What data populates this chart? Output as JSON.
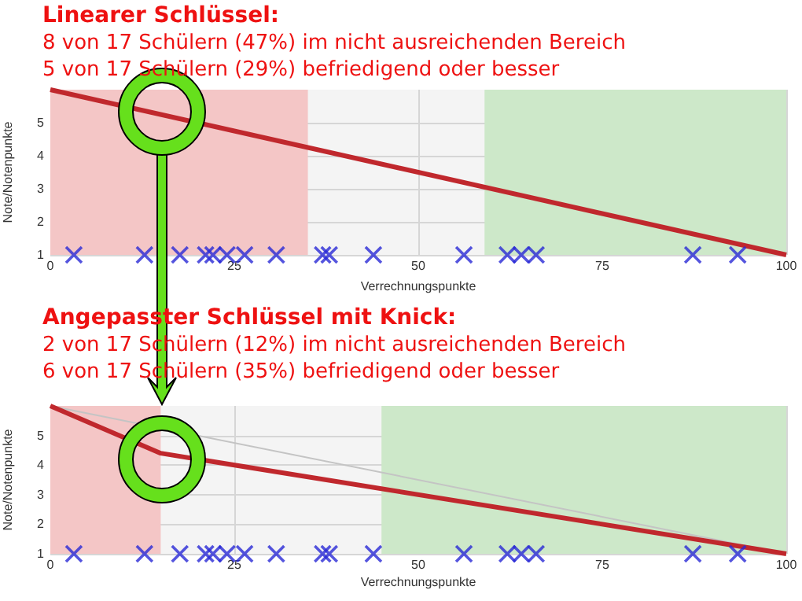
{
  "chart_data": [
    {
      "type": "line",
      "title": "Linearer Schlüssel:",
      "subtitle": "8 von 17 Schülern (47%) im nicht ausreichenden Bereich\n5 von 17 Schülern (29%) befriedigend oder besser",
      "xlabel": "Verrechnungspunkte",
      "ylabel": "Note/Notenpunkte",
      "xlim": [
        0,
        100
      ],
      "xticks": [
        0,
        25,
        50,
        75,
        100
      ],
      "ylim": [
        1,
        6
      ],
      "yticks": [
        1,
        2,
        3,
        4,
        5
      ],
      "grid": true,
      "bands": [
        {
          "axis": "x",
          "from": 0,
          "to": 35,
          "color": "#f4c6c6"
        },
        {
          "axis": "x",
          "from": 59,
          "to": 100,
          "color": "#cde8c9"
        }
      ],
      "series": [
        {
          "type": "line",
          "color": "#c0282d",
          "marker": "none",
          "x": [
            0,
            100
          ],
          "values": [
            6,
            1
          ]
        },
        {
          "type": "scatter",
          "color": "#2929d6",
          "marker": "cross",
          "x": [
            3.2,
            12.8,
            17.6,
            21.1,
            22.1,
            24.0,
            26.4,
            30.7,
            37.0,
            37.9,
            43.9,
            56.2,
            62.1,
            64.0,
            66.0,
            87.3,
            93.4
          ],
          "values": [
            1,
            1,
            1,
            1,
            1,
            1,
            1,
            1,
            1,
            1,
            1,
            1,
            1,
            1,
            1,
            1,
            1
          ]
        }
      ]
    },
    {
      "type": "line",
      "title": "Angepasster Schlüssel mit Knick:",
      "subtitle": "2 von 17 Schülern (12%) im nicht ausreichenden Bereich\n6 von 17 Schülern (35%) befriedigend oder besser",
      "xlabel": "Verrechnungspunkte",
      "ylabel": "Note/Notenpunkte",
      "xlim": [
        0,
        100
      ],
      "xticks": [
        0,
        25,
        50,
        75,
        100
      ],
      "ylim": [
        1,
        6
      ],
      "yticks": [
        1,
        2,
        3,
        4,
        5
      ],
      "grid": true,
      "bands": [
        {
          "axis": "x",
          "from": 0,
          "to": 15,
          "color": "#f4c6c6"
        },
        {
          "axis": "x",
          "from": 45,
          "to": 100,
          "color": "#cde8c9"
        }
      ],
      "series": [
        {
          "type": "line",
          "color": "#c4c4c4",
          "marker": "none",
          "x": [
            0,
            100
          ],
          "values": [
            6,
            1
          ]
        },
        {
          "type": "line",
          "color": "#c0282d",
          "marker": "none",
          "x": [
            0,
            15,
            100
          ],
          "values": [
            6,
            4.4,
            1
          ]
        },
        {
          "type": "scatter",
          "color": "#2929d6",
          "marker": "cross",
          "x": [
            3.2,
            12.8,
            17.6,
            21.1,
            22.1,
            24.0,
            26.4,
            30.7,
            37.0,
            37.9,
            43.9,
            56.2,
            62.1,
            64.0,
            66.0,
            87.3,
            93.4
          ],
          "values": [
            1,
            1,
            1,
            1,
            1,
            1,
            1,
            1,
            1,
            1,
            1,
            1,
            1,
            1,
            1,
            1,
            1
          ]
        }
      ]
    }
  ]
}
